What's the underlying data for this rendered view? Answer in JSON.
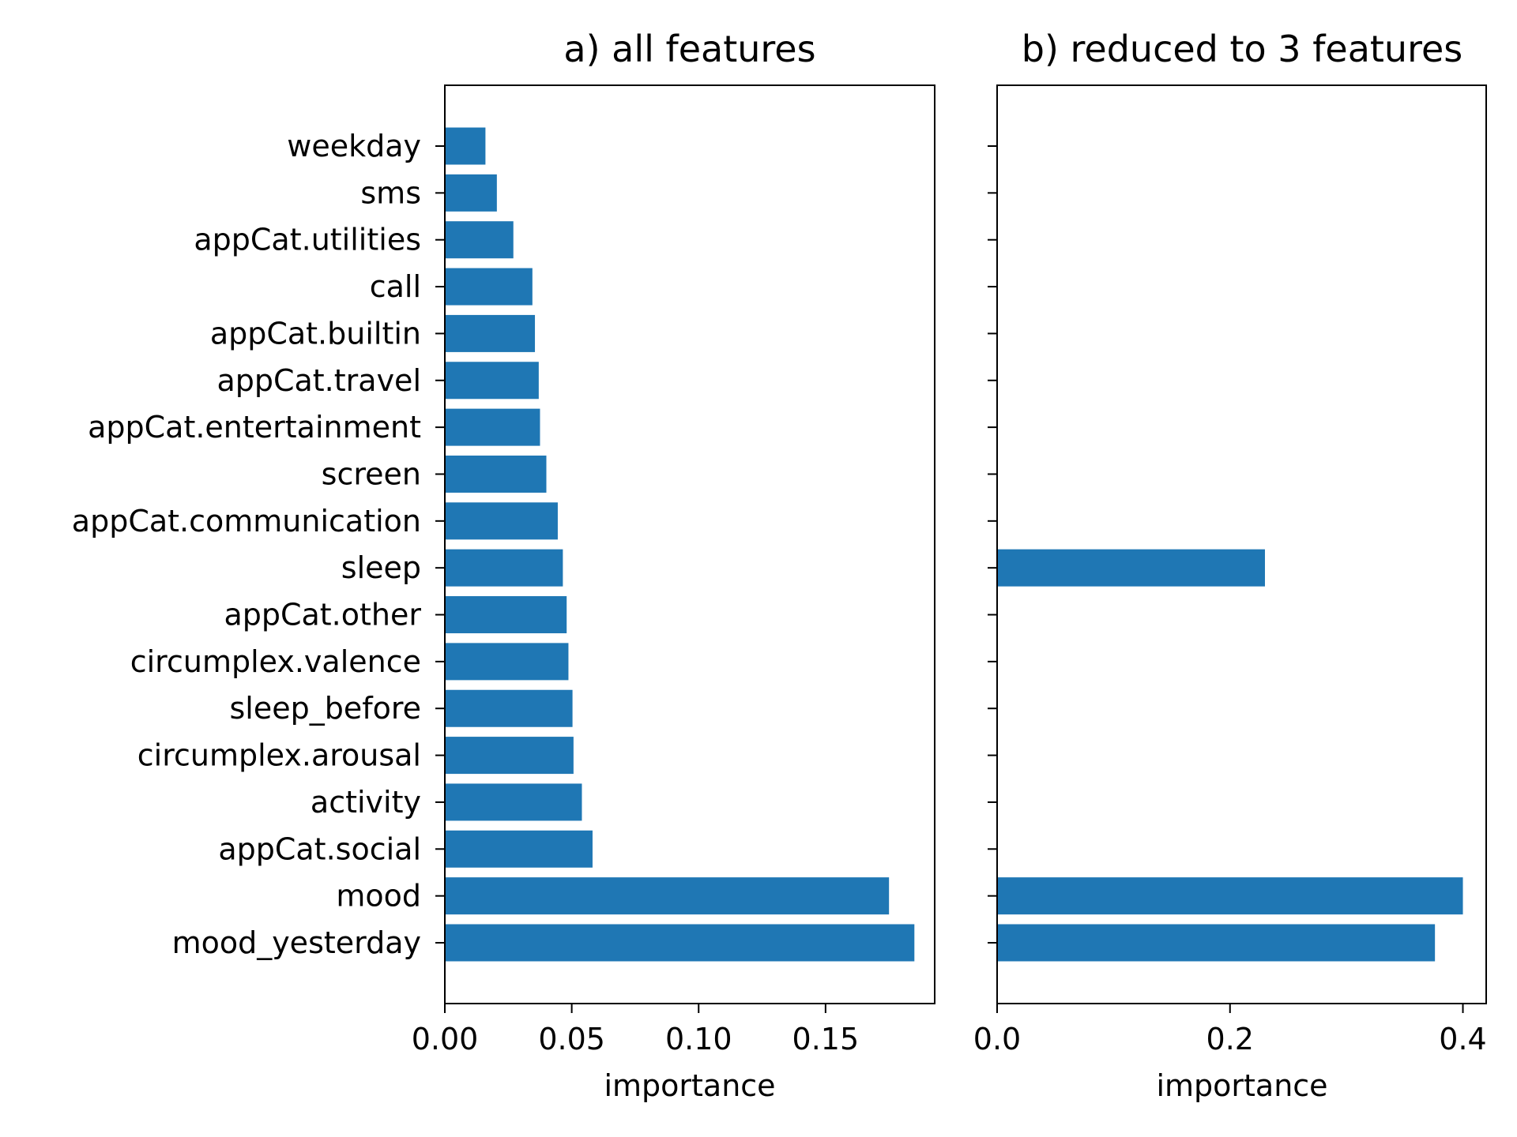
{
  "colors": {
    "bar": "#1f77b4",
    "axis": "#000000",
    "background": "#ffffff"
  },
  "chart_data": [
    {
      "type": "bar",
      "orientation": "horizontal",
      "title": "a) all features",
      "xlabel": "importance",
      "ylabel": "",
      "xlim": [
        0,
        0.193
      ],
      "xticks": [
        0,
        0.05,
        0.1,
        0.15
      ],
      "xtick_labels": [
        "0.00",
        "0.05",
        "0.10",
        "0.15"
      ],
      "grid": false,
      "categories": [
        "weekday",
        "sms",
        "appCat.utilities",
        "call",
        "appCat.builtin",
        "appCat.travel",
        "appCat.entertainment",
        "screen",
        "appCat.communication",
        "sleep",
        "appCat.other",
        "circumplex.valence",
        "sleep_before",
        "circumplex.arousal",
        "activity",
        "appCat.social",
        "mood",
        "mood_yesterday"
      ],
      "values": [
        0.016,
        0.0205,
        0.027,
        0.0345,
        0.0355,
        0.037,
        0.0375,
        0.04,
        0.0445,
        0.0465,
        0.048,
        0.0487,
        0.0503,
        0.0507,
        0.054,
        0.0582,
        0.175,
        0.185
      ]
    },
    {
      "type": "bar",
      "orientation": "horizontal",
      "title": "b) reduced to 3 features",
      "xlabel": "importance",
      "ylabel": "",
      "xlim": [
        0,
        0.42
      ],
      "xticks": [
        0,
        0.2,
        0.4
      ],
      "xtick_labels": [
        "0.0",
        "0.2",
        "0.4"
      ],
      "grid": false,
      "categories": [
        "weekday",
        "sms",
        "appCat.utilities",
        "call",
        "appCat.builtin",
        "appCat.travel",
        "appCat.entertainment",
        "screen",
        "appCat.communication",
        "sleep",
        "appCat.other",
        "circumplex.valence",
        "sleep_before",
        "circumplex.arousal",
        "activity",
        "appCat.social",
        "mood",
        "mood_yesterday"
      ],
      "show_category_labels": false,
      "values": [
        0,
        0,
        0,
        0,
        0,
        0,
        0,
        0,
        0,
        0.23,
        0,
        0,
        0,
        0,
        0,
        0,
        0.4,
        0.376
      ]
    }
  ]
}
